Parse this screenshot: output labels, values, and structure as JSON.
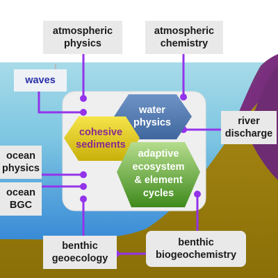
{
  "labels": {
    "atmospheric_physics": "atmospheric\nphysics",
    "atmospheric_chemistry": "atmospheric\nchemistry",
    "waves": "waves",
    "river_discharge": "river\ndischarge",
    "ocean_physics": "ocean\nphysics",
    "ocean_bgc": "ocean\nBGC",
    "benthic_geoecology": "benthic\ngeoecology",
    "benthic_biogeochemistry": "benthic\nbiogeochemistry"
  },
  "hexagons": {
    "water_physics": "water\nphysics",
    "cohesive_sediments": "cohesive\nsediments",
    "adaptive_ecosystem": "adaptive\necosystem\n& element\ncycles"
  },
  "colors": {
    "sky": "#ffffff",
    "sea_surface": "#9fd8e6",
    "deep_water": "#1d6fd1",
    "seabed": "#9b7f10",
    "land": "#6b2f72",
    "connector": "#9333ea",
    "panel": "#efefef",
    "water_physics_hex": "#5b83b8",
    "cohesive_sediments_hex": "#e9d21c",
    "adaptive_ecosystem_hex": "#7fb84a"
  }
}
